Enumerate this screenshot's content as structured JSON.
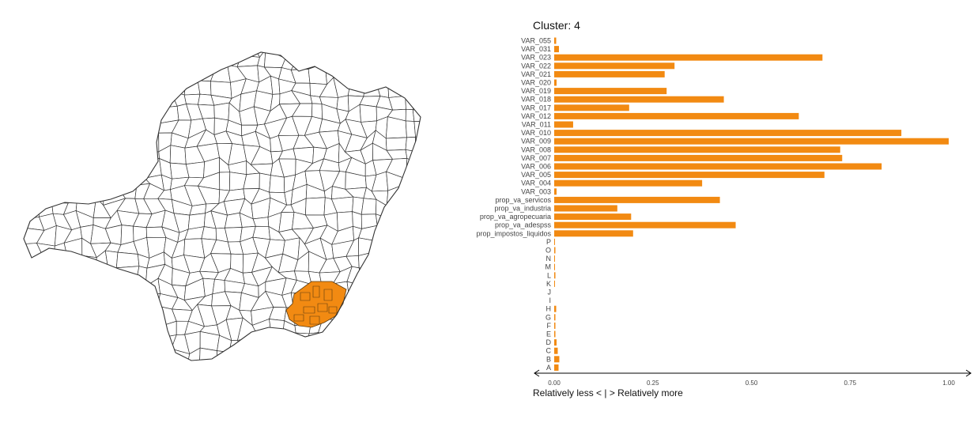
{
  "map": {
    "fill_colors": {
      "outline": "#333333",
      "highlight": "#f28a12"
    }
  },
  "chart_data": {
    "type": "bar",
    "orientation": "horizontal",
    "title": "Cluster: 4",
    "xlabel": "Relatively less < | > Relatively more",
    "xlim": [
      0,
      1.0
    ],
    "xticks": [
      "0.00",
      "0.25",
      "0.50",
      "0.75",
      "1.00"
    ],
    "bar_color": "#f28a12",
    "categories": [
      "VAR_055",
      "VAR_031",
      "VAR_023",
      "VAR_022",
      "VAR_021",
      "VAR_020",
      "VAR_019",
      "VAR_018",
      "VAR_017",
      "VAR_012",
      "VAR_011",
      "VAR_010",
      "VAR_009",
      "VAR_008",
      "VAR_007",
      "VAR_006",
      "VAR_005",
      "VAR_004",
      "VAR_003",
      "prop_va_servicos",
      "prop_va_industria",
      "prop_va_agropecuaria",
      "prop_va_adespss",
      "prop_impostos_liquidos",
      "P",
      "O",
      "N",
      "M",
      "L",
      "K",
      "J",
      "I",
      "H",
      "G",
      "F",
      "E",
      "D",
      "C",
      "B",
      "A"
    ],
    "values": [
      0.005,
      0.012,
      0.68,
      0.305,
      0.28,
      0.006,
      0.285,
      0.43,
      0.19,
      0.62,
      0.048,
      0.88,
      1.0,
      0.725,
      0.73,
      0.83,
      0.685,
      0.375,
      0.006,
      0.42,
      0.16,
      0.195,
      0.46,
      0.2,
      0.002,
      0.003,
      0.002,
      0.002,
      0.003,
      0.002,
      0.0,
      0.0,
      0.005,
      0.003,
      0.003,
      0.003,
      0.006,
      0.009,
      0.013,
      0.011
    ]
  }
}
